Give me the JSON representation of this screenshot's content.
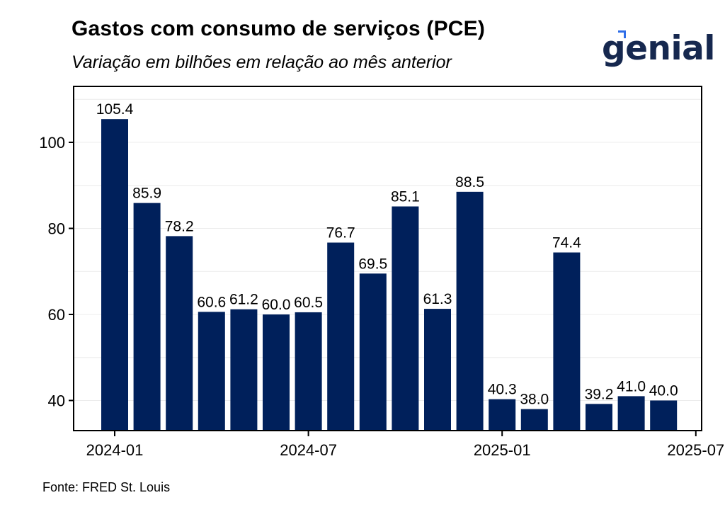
{
  "title": "Gastos com consumo de serviços (PCE)",
  "subtitle": "Variação em bilhões em relação ao mês anterior",
  "source": "Fonte: FRED St. Louis",
  "logo_text": "genial",
  "colors": {
    "bar": "#00205b",
    "grid": "#ececec",
    "logo": "#16284f",
    "logo_accent": "#2f6ee8"
  },
  "chart_data": {
    "type": "bar",
    "categories": [
      "2024-01",
      "2024-02",
      "2024-03",
      "2024-04",
      "2024-05",
      "2024-06",
      "2024-07",
      "2024-08",
      "2024-09",
      "2024-10",
      "2024-11",
      "2024-12",
      "2025-01",
      "2025-02",
      "2025-03",
      "2025-04",
      "2025-05",
      "2025-06"
    ],
    "values": [
      105.4,
      85.9,
      78.2,
      60.6,
      61.2,
      60.0,
      60.5,
      76.7,
      69.5,
      85.1,
      61.3,
      88.5,
      40.3,
      38.0,
      74.4,
      39.2,
      41.0,
      40.0
    ],
    "value_labels": [
      "105.4",
      "85.9",
      "78.2",
      "60.6",
      "61.2",
      "60.0",
      "60.5",
      "76.7",
      "69.5",
      "85.1",
      "61.3",
      "88.5",
      "40.3",
      "38.0",
      "74.4",
      "39.2",
      "41.0",
      "40.0"
    ],
    "ylim": [
      33,
      113
    ],
    "y_ticks": [
      40,
      60,
      80,
      100
    ],
    "x_ticks": [
      "2024-01",
      "2024-07",
      "2025-01",
      "2025-07"
    ],
    "grid": true,
    "legend": false
  }
}
